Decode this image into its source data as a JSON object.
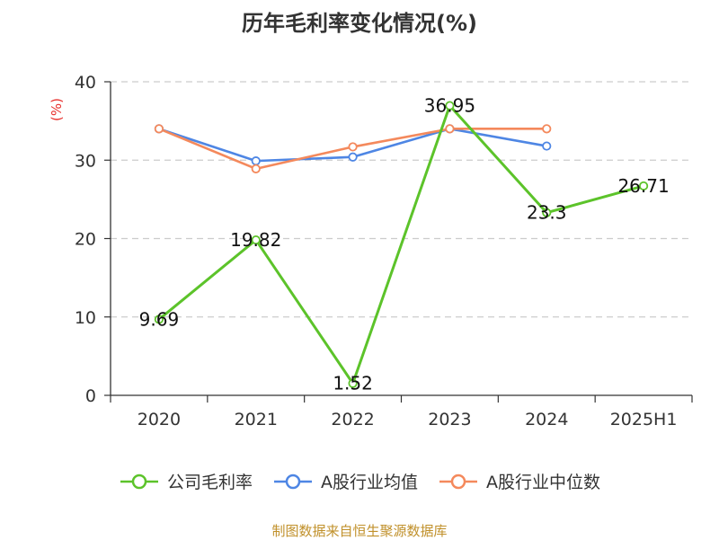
{
  "title": "历年毛利率变化情况(%)",
  "unit_label": "(%)",
  "source": "制图数据来自恒生聚源数据库",
  "chart_data": {
    "type": "line",
    "categories": [
      "2020",
      "2021",
      "2022",
      "2023",
      "2024",
      "2025H1"
    ],
    "ylim": [
      0,
      40
    ],
    "yticks": [
      0,
      10,
      20,
      30,
      40
    ],
    "grid": true,
    "legend_position": "bottom",
    "series": [
      {
        "name": "公司毛利率",
        "color": "#5cc32a",
        "values": [
          9.69,
          19.82,
          1.52,
          36.95,
          23.3,
          26.71
        ],
        "labels": [
          "9.69",
          "19.82",
          "1.52",
          "36.95",
          "23.3",
          "26.71"
        ]
      },
      {
        "name": "A股行业均值",
        "color": "#4e86e4",
        "values": [
          34.0,
          29.9,
          30.4,
          34.0,
          31.8,
          null
        ]
      },
      {
        "name": "A股行业中位数",
        "color": "#f4895c",
        "values": [
          34.0,
          28.9,
          31.7,
          34.0,
          34.0,
          null
        ]
      }
    ]
  }
}
